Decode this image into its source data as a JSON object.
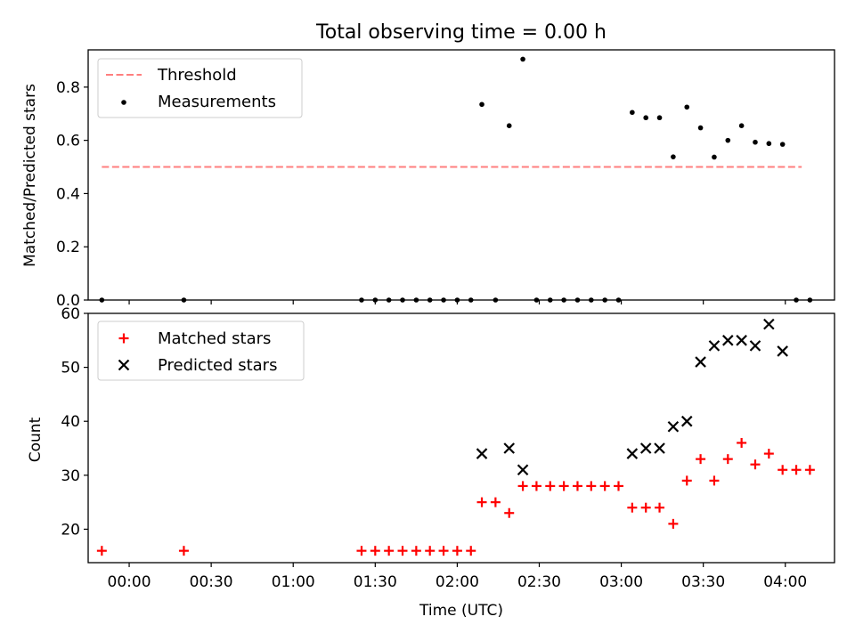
{
  "chart_data": [
    {
      "type": "scatter",
      "title": "Total observing time = 0.00 h",
      "ylabel": "Matched/Predicted stars",
      "xlabel": "",
      "xlim": [
        "23:45",
        "04:18"
      ],
      "ylim": [
        0,
        0.94
      ],
      "yticks": [
        "0.0",
        "0.2",
        "0.4",
        "0.6",
        "0.8"
      ],
      "legend": {
        "position": "top-left",
        "entries": [
          "Threshold",
          "Measurements"
        ]
      },
      "threshold": {
        "name": "Threshold",
        "value": 0.5,
        "x": [
          "23:50",
          "04:06"
        ],
        "color": "#ff7f7f"
      },
      "series": [
        {
          "name": "Measurements",
          "color": "#000000",
          "points": [
            [
              "23:50",
              0.0
            ],
            [
              "00:20",
              0.0
            ],
            [
              "01:25",
              0.0
            ],
            [
              "01:30",
              0.0
            ],
            [
              "01:35",
              0.0
            ],
            [
              "01:40",
              0.0
            ],
            [
              "01:45",
              0.0
            ],
            [
              "01:50",
              0.0
            ],
            [
              "01:55",
              0.0
            ],
            [
              "02:00",
              0.0
            ],
            [
              "02:05",
              0.0
            ],
            [
              "02:09",
              0.735
            ],
            [
              "02:14",
              0.0
            ],
            [
              "02:19",
              0.655
            ],
            [
              "02:24",
              0.905
            ],
            [
              "02:29",
              0.0
            ],
            [
              "02:34",
              0.0
            ],
            [
              "02:39",
              0.0
            ],
            [
              "02:44",
              0.0
            ],
            [
              "02:49",
              0.0
            ],
            [
              "02:54",
              0.0
            ],
            [
              "02:59",
              0.0
            ],
            [
              "03:04",
              0.705
            ],
            [
              "03:09",
              0.685
            ],
            [
              "03:14",
              0.685
            ],
            [
              "03:19",
              0.538
            ],
            [
              "03:24",
              0.725
            ],
            [
              "03:29",
              0.647
            ],
            [
              "03:34",
              0.537
            ],
            [
              "03:39",
              0.6
            ],
            [
              "03:44",
              0.655
            ],
            [
              "03:49",
              0.593
            ],
            [
              "03:54",
              0.588
            ],
            [
              "03:59",
              0.585
            ],
            [
              "04:04",
              0.0
            ],
            [
              "04:09",
              0.0
            ]
          ]
        }
      ]
    },
    {
      "type": "scatter",
      "title": "",
      "xlabel": "Time (UTC)",
      "ylabel": "Count",
      "xlim": [
        "23:45",
        "04:18"
      ],
      "ylim": [
        13.8,
        60
      ],
      "xticks": [
        "00:00",
        "00:30",
        "01:00",
        "01:30",
        "02:00",
        "02:30",
        "03:00",
        "03:30",
        "04:00"
      ],
      "yticks": [
        "20",
        "30",
        "40",
        "50",
        "60"
      ],
      "legend": {
        "position": "top-left",
        "entries": [
          "Matched stars",
          "Predicted stars"
        ]
      },
      "series": [
        {
          "name": "Matched stars",
          "marker": "plus",
          "color": "#ff0000",
          "points": [
            [
              "23:50",
              16
            ],
            [
              "00:20",
              16
            ],
            [
              "01:25",
              16
            ],
            [
              "01:30",
              16
            ],
            [
              "01:35",
              16
            ],
            [
              "01:40",
              16
            ],
            [
              "01:45",
              16
            ],
            [
              "01:50",
              16
            ],
            [
              "01:55",
              16
            ],
            [
              "02:00",
              16
            ],
            [
              "02:05",
              16
            ],
            [
              "02:09",
              25
            ],
            [
              "02:14",
              25
            ],
            [
              "02:19",
              23
            ],
            [
              "02:24",
              28
            ],
            [
              "02:29",
              28
            ],
            [
              "02:34",
              28
            ],
            [
              "02:39",
              28
            ],
            [
              "02:44",
              28
            ],
            [
              "02:49",
              28
            ],
            [
              "02:54",
              28
            ],
            [
              "02:59",
              28
            ],
            [
              "03:04",
              24
            ],
            [
              "03:09",
              24
            ],
            [
              "03:14",
              24
            ],
            [
              "03:19",
              21
            ],
            [
              "03:24",
              29
            ],
            [
              "03:29",
              33
            ],
            [
              "03:34",
              29
            ],
            [
              "03:39",
              33
            ],
            [
              "03:44",
              36
            ],
            [
              "03:49",
              32
            ],
            [
              "03:54",
              34
            ],
            [
              "03:59",
              31
            ],
            [
              "04:04",
              31
            ],
            [
              "04:09",
              31
            ]
          ]
        },
        {
          "name": "Predicted stars",
          "marker": "x",
          "color": "#000000",
          "points": [
            [
              "02:09",
              34
            ],
            [
              "02:19",
              35
            ],
            [
              "02:24",
              31
            ],
            [
              "03:04",
              34
            ],
            [
              "03:09",
              35
            ],
            [
              "03:14",
              35
            ],
            [
              "03:19",
              39
            ],
            [
              "03:24",
              40
            ],
            [
              "03:29",
              51
            ],
            [
              "03:34",
              54
            ],
            [
              "03:39",
              55
            ],
            [
              "03:44",
              55
            ],
            [
              "03:49",
              54
            ],
            [
              "03:54",
              58
            ],
            [
              "03:59",
              53
            ]
          ]
        }
      ]
    }
  ]
}
